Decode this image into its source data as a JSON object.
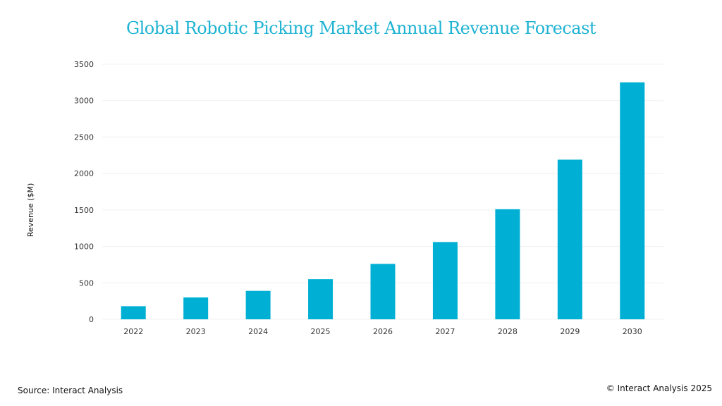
{
  "chart_data": {
    "type": "bar",
    "title": "Global Robotic Picking Market Annual Revenue Forecast",
    "xlabel": "",
    "ylabel": "Revenue ($M)",
    "categories": [
      "2022",
      "2023",
      "2024",
      "2025",
      "2026",
      "2027",
      "2028",
      "2029",
      "2030"
    ],
    "values": [
      180,
      300,
      390,
      550,
      760,
      1060,
      1510,
      2190,
      3250
    ],
    "ylim": [
      0,
      3500
    ],
    "yticks": [
      0,
      500,
      1000,
      1500,
      2000,
      2500,
      3000,
      3500
    ],
    "grid": true,
    "legend": "none",
    "bar_color": "#00b0d4"
  },
  "footer": {
    "source": "Source: Interact Analysis",
    "copyright": "© Interact Analysis 2025"
  }
}
